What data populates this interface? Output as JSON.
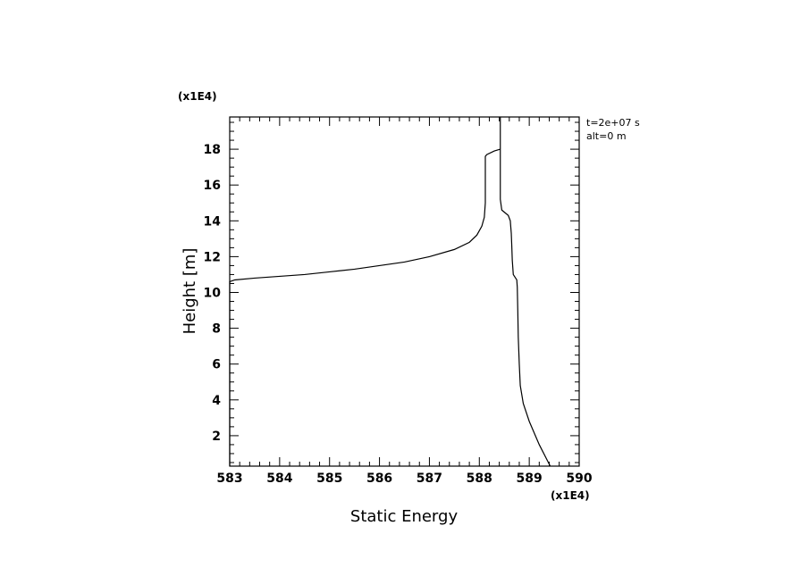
{
  "chart_data": {
    "type": "line",
    "xlabel": "Static Energy",
    "ylabel": "Height [m]",
    "x_multiplier": "(x1E4)",
    "y_multiplier": "(x1E4)",
    "xlim": [
      583,
      590
    ],
    "ylim": [
      0.3,
      19.8
    ],
    "x_ticks": [
      583,
      584,
      585,
      586,
      587,
      588,
      589,
      590
    ],
    "y_ticks": [
      2,
      4,
      6,
      8,
      10,
      12,
      14,
      16,
      18
    ],
    "annotations": [
      "t=2e+07 s",
      "alt=0 m"
    ],
    "legend": "none",
    "grid": false,
    "series": [
      {
        "points": [
          [
            589.42,
            0.3
          ],
          [
            589.2,
            1.5
          ],
          [
            589.0,
            2.8
          ],
          [
            588.88,
            3.8
          ],
          [
            588.82,
            4.8
          ],
          [
            588.8,
            6.0
          ],
          [
            588.78,
            7.5
          ],
          [
            588.77,
            9.0
          ],
          [
            588.76,
            10.3
          ],
          [
            588.75,
            10.7
          ],
          [
            588.68,
            11.0
          ],
          [
            588.66,
            11.8
          ],
          [
            588.65,
            12.6
          ],
          [
            588.64,
            13.3
          ],
          [
            588.62,
            14.0
          ],
          [
            588.58,
            14.3
          ],
          [
            588.45,
            14.6
          ],
          [
            588.42,
            15.2
          ],
          [
            588.42,
            16.6
          ],
          [
            588.42,
            17.0
          ],
          [
            588.42,
            17.6
          ],
          [
            588.42,
            18.5
          ],
          [
            588.42,
            19.8
          ],
          [
            588.42,
            18.5
          ],
          [
            588.42,
            18.0
          ],
          [
            588.3,
            17.9
          ],
          [
            588.15,
            17.7
          ],
          [
            588.12,
            17.6
          ],
          [
            588.12,
            15.0
          ],
          [
            588.1,
            14.2
          ],
          [
            588.05,
            13.7
          ],
          [
            587.95,
            13.2
          ],
          [
            587.8,
            12.8
          ],
          [
            587.5,
            12.4
          ],
          [
            587.0,
            12.0
          ],
          [
            586.5,
            11.7
          ],
          [
            586.0,
            11.5
          ],
          [
            585.5,
            11.3
          ],
          [
            585.0,
            11.15
          ],
          [
            584.5,
            11.0
          ],
          [
            584.0,
            10.9
          ],
          [
            583.5,
            10.8
          ],
          [
            583.1,
            10.7
          ],
          [
            583.0,
            10.6
          ],
          [
            583.0,
            0.3
          ]
        ]
      }
    ]
  }
}
